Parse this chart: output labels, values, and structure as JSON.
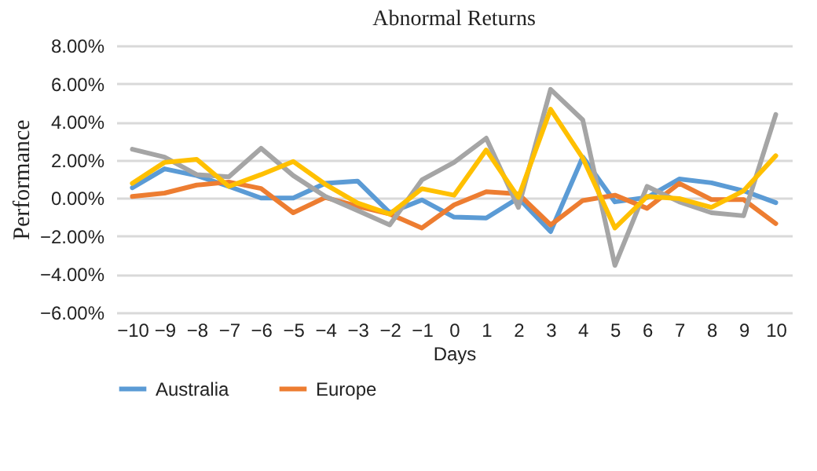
{
  "chart_data": {
    "type": "line",
    "title": "Abnormal Returns",
    "xlabel": "Days",
    "ylabel": "Performance",
    "categories": [
      "−10",
      "−9",
      "−8",
      "−7",
      "−6",
      "−5",
      "−4",
      "−3",
      "−2",
      "−1",
      "0",
      "1",
      "2",
      "3",
      "4",
      "5",
      "6",
      "7",
      "8",
      "9",
      "10"
    ],
    "series": [
      {
        "name": "Australia",
        "color": "#5b9bd5",
        "values": [
          0.54,
          1.53,
          1.18,
          0.61,
          0.0,
          0.0,
          0.77,
          0.89,
          -0.77,
          -0.1,
          -1.0,
          -1.05,
          0.0,
          -1.76,
          2.15,
          -0.2,
          0.03,
          1.0,
          0.8,
          0.38,
          -0.24
        ]
      },
      {
        "name": "Europe",
        "color": "#ed7d31",
        "values": [
          0.08,
          0.26,
          0.68,
          0.84,
          0.5,
          -0.77,
          0.03,
          -0.43,
          -0.84,
          -1.57,
          -0.36,
          0.33,
          0.22,
          -1.41,
          -0.13,
          0.15,
          -0.54,
          0.77,
          -0.08,
          -0.08,
          -1.34
        ]
      },
      {
        "color": "#a5a5a5",
        "values": [
          2.56,
          2.15,
          1.23,
          1.11,
          2.61,
          1.18,
          0.08,
          -0.66,
          -1.41,
          0.95,
          1.87,
          3.14,
          -0.49,
          5.7,
          4.1,
          -3.53,
          0.61,
          -0.2,
          -0.77,
          -0.93,
          4.38
        ]
      },
      {
        "color": "#ffc000",
        "values": [
          0.77,
          1.87,
          2.03,
          0.61,
          1.23,
          1.92,
          0.72,
          -0.26,
          -0.84,
          0.49,
          0.15,
          2.52,
          0.03,
          4.66,
          2.1,
          -1.57,
          0.08,
          -0.03,
          -0.49,
          0.38,
          2.22
        ]
      }
    ],
    "ylim": [
      -6,
      8
    ],
    "yticks": [
      {
        "value": -6,
        "label": "−6.00%"
      },
      {
        "value": -4,
        "label": "−4.00%"
      },
      {
        "value": -2,
        "label": "−2.00%"
      },
      {
        "value": 0,
        "label": "0.00%"
      },
      {
        "value": 2,
        "label": "2.00%"
      },
      {
        "value": 4,
        "label": "4.00%"
      },
      {
        "value": 6,
        "label": "6.00%"
      },
      {
        "value": 8,
        "label": "8.00%"
      }
    ],
    "grid": "y",
    "legend": "bottom",
    "marker": "none",
    "line_style": "solid"
  }
}
